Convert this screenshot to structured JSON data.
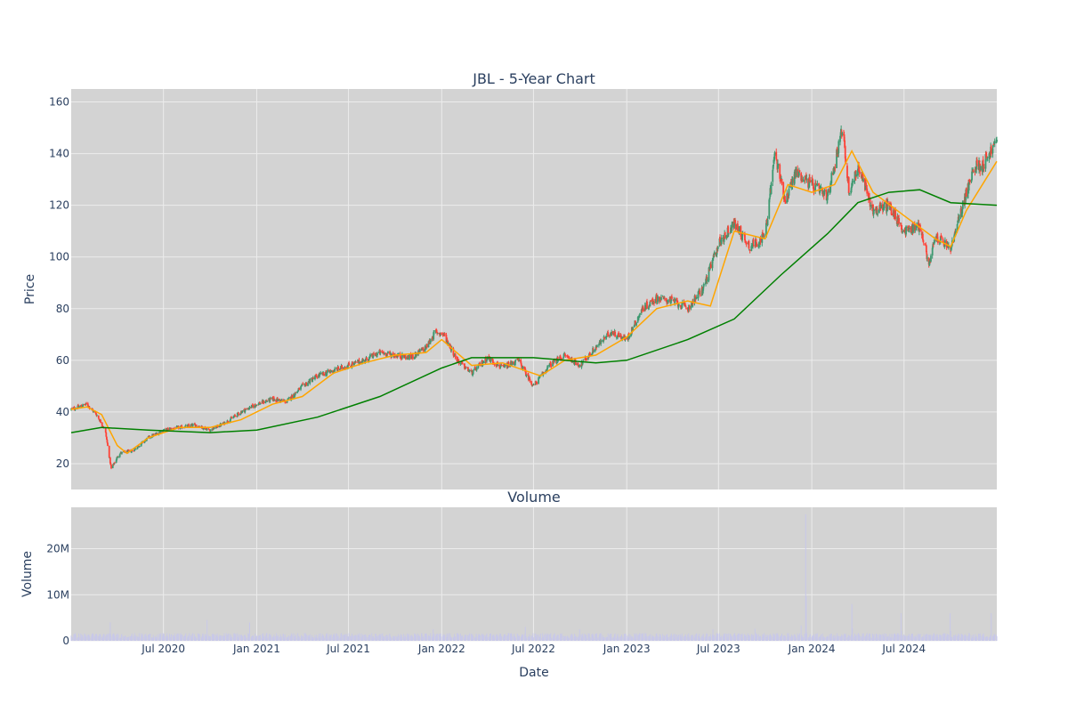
{
  "colors": {
    "plot_bg": "#d3d3d3",
    "grid": "#ececec",
    "increasing": "#3d9970",
    "decreasing": "#ff4136",
    "ma_short": "#ffa500",
    "ma_long": "#008000",
    "volume": "#c8c8e8",
    "text": "#2a3f5f"
  },
  "chart_data": [
    {
      "type": "candlestick",
      "title": "JBL - 5-Year Chart",
      "ylabel": "Price",
      "ylim": [
        10,
        165
      ],
      "yticks": [
        20,
        40,
        60,
        80,
        100,
        120,
        140,
        160
      ],
      "grid": true,
      "x_range": [
        "2020-01-01",
        "2024-12-31"
      ],
      "price_path": [
        [
          "2020-01-01",
          41
        ],
        [
          "2020-02-01",
          43
        ],
        [
          "2020-02-20",
          39
        ],
        [
          "2020-03-08",
          33
        ],
        [
          "2020-03-20",
          18
        ],
        [
          "2020-04-05",
          24
        ],
        [
          "2020-05-01",
          25
        ],
        [
          "2020-06-01",
          30
        ],
        [
          "2020-07-01",
          33
        ],
        [
          "2020-08-01",
          34
        ],
        [
          "2020-09-01",
          35
        ],
        [
          "2020-10-01",
          33
        ],
        [
          "2020-11-01",
          36
        ],
        [
          "2020-12-01",
          40
        ],
        [
          "2021-01-01",
          43
        ],
        [
          "2021-02-01",
          45
        ],
        [
          "2021-03-01",
          44
        ],
        [
          "2021-04-01",
          50
        ],
        [
          "2021-05-01",
          54
        ],
        [
          "2021-06-01",
          56
        ],
        [
          "2021-07-01",
          58
        ],
        [
          "2021-08-01",
          60
        ],
        [
          "2021-09-01",
          63
        ],
        [
          "2021-10-01",
          62
        ],
        [
          "2021-11-01",
          61
        ],
        [
          "2021-12-01",
          65
        ],
        [
          "2021-12-20",
          71
        ],
        [
          "2022-01-05",
          70
        ],
        [
          "2022-02-01",
          60
        ],
        [
          "2022-03-01",
          55
        ],
        [
          "2022-04-01",
          61
        ],
        [
          "2022-05-01",
          57
        ],
        [
          "2022-06-01",
          60
        ],
        [
          "2022-07-01",
          50
        ],
        [
          "2022-08-01",
          58
        ],
        [
          "2022-09-01",
          62
        ],
        [
          "2022-10-01",
          58
        ],
        [
          "2022-11-01",
          65
        ],
        [
          "2022-12-01",
          71
        ],
        [
          "2023-01-01",
          68
        ],
        [
          "2023-02-01",
          80
        ],
        [
          "2023-03-01",
          84
        ],
        [
          "2023-04-01",
          83
        ],
        [
          "2023-05-01",
          80
        ],
        [
          "2023-06-01",
          88
        ],
        [
          "2023-07-01",
          105
        ],
        [
          "2023-08-01",
          113
        ],
        [
          "2023-09-01",
          104
        ],
        [
          "2023-10-01",
          108
        ],
        [
          "2023-10-20",
          140
        ],
        [
          "2023-11-10",
          122
        ],
        [
          "2023-12-01",
          133
        ],
        [
          "2024-01-01",
          128
        ],
        [
          "2024-02-01",
          123
        ],
        [
          "2024-03-01",
          150
        ],
        [
          "2024-03-15",
          125
        ],
        [
          "2024-04-01",
          135
        ],
        [
          "2024-05-01",
          118
        ],
        [
          "2024-06-01",
          120
        ],
        [
          "2024-07-01",
          110
        ],
        [
          "2024-08-01",
          112
        ],
        [
          "2024-08-20",
          97
        ],
        [
          "2024-09-01",
          108
        ],
        [
          "2024-10-01",
          103
        ],
        [
          "2024-11-01",
          125
        ],
        [
          "2024-11-20",
          136
        ],
        [
          "2024-12-01",
          135
        ],
        [
          "2024-12-31",
          145
        ]
      ],
      "series": [
        {
          "name": "",
          "color": "#ffa500",
          "points": [
            [
              "2020-01-01",
              41
            ],
            [
              "2020-02-01",
              42
            ],
            [
              "2020-03-01",
              39
            ],
            [
              "2020-04-01",
              27
            ],
            [
              "2020-04-20",
              24
            ],
            [
              "2020-06-01",
              30
            ],
            [
              "2020-08-01",
              34
            ],
            [
              "2020-10-01",
              34
            ],
            [
              "2020-12-01",
              37
            ],
            [
              "2021-02-01",
              43
            ],
            [
              "2021-04-01",
              46
            ],
            [
              "2021-06-01",
              55
            ],
            [
              "2021-08-01",
              59
            ],
            [
              "2021-10-01",
              62
            ],
            [
              "2021-12-01",
              63
            ],
            [
              "2022-01-01",
              68
            ],
            [
              "2022-03-01",
              58
            ],
            [
              "2022-05-01",
              59
            ],
            [
              "2022-07-15",
              54
            ],
            [
              "2022-09-01",
              60
            ],
            [
              "2022-11-01",
              62
            ],
            [
              "2023-01-01",
              69
            ],
            [
              "2023-03-01",
              80
            ],
            [
              "2023-05-01",
              83
            ],
            [
              "2023-06-15",
              81
            ],
            [
              "2023-08-01",
              110
            ],
            [
              "2023-10-01",
              107
            ],
            [
              "2023-11-15",
              128
            ],
            [
              "2024-01-01",
              125
            ],
            [
              "2024-02-15",
              128
            ],
            [
              "2024-03-20",
              141
            ],
            [
              "2024-05-01",
              125
            ],
            [
              "2024-07-01",
              116
            ],
            [
              "2024-09-01",
              107
            ],
            [
              "2024-10-01",
              104
            ],
            [
              "2024-11-01",
              118
            ],
            [
              "2024-12-31",
              137
            ]
          ]
        },
        {
          "name": "",
          "color": "#008000",
          "points": [
            [
              "2020-01-01",
              32
            ],
            [
              "2020-03-01",
              34
            ],
            [
              "2020-06-01",
              33
            ],
            [
              "2020-10-01",
              32
            ],
            [
              "2021-01-01",
              33
            ],
            [
              "2021-05-01",
              38
            ],
            [
              "2021-09-01",
              46
            ],
            [
              "2022-01-01",
              57
            ],
            [
              "2022-03-01",
              61
            ],
            [
              "2022-07-01",
              61
            ],
            [
              "2022-11-01",
              59
            ],
            [
              "2023-01-01",
              60
            ],
            [
              "2023-05-01",
              68
            ],
            [
              "2023-08-01",
              76
            ],
            [
              "2023-11-01",
              93
            ],
            [
              "2024-02-01",
              109
            ],
            [
              "2024-04-01",
              121
            ],
            [
              "2024-06-01",
              125
            ],
            [
              "2024-08-01",
              126
            ],
            [
              "2024-10-01",
              121
            ],
            [
              "2024-12-31",
              120
            ]
          ]
        }
      ]
    },
    {
      "type": "bar",
      "title": "Volume",
      "xlabel": "Date",
      "ylabel": "Volume",
      "ylim": [
        0,
        29
      ],
      "yticks": [
        0,
        10,
        20
      ],
      "ytick_labels": [
        "0",
        "10M",
        "20M"
      ],
      "xticks": [
        "2020-07-01",
        "2021-01-01",
        "2021-07-01",
        "2022-01-01",
        "2022-07-01",
        "2023-01-01",
        "2023-07-01",
        "2024-01-01",
        "2024-07-01"
      ],
      "xtick_labels": [
        "Jul 2020",
        "Jan 2021",
        "Jul 2021",
        "Jan 2022",
        "Jul 2022",
        "Jan 2023",
        "Jul 2023",
        "Jan 2024",
        "Jul 2024"
      ],
      "baseline_millions": 1.2,
      "spikes": [
        [
          "2020-03-18",
          4
        ],
        [
          "2020-06-20",
          4
        ],
        [
          "2020-09-25",
          4.5
        ],
        [
          "2020-12-18",
          4
        ],
        [
          "2021-03-20",
          3
        ],
        [
          "2021-12-15",
          2.5
        ],
        [
          "2022-06-15",
          3
        ],
        [
          "2022-09-30",
          2.5
        ],
        [
          "2023-06-20",
          2.5
        ],
        [
          "2023-09-10",
          7.5
        ],
        [
          "2023-09-30",
          7
        ],
        [
          "2023-12-10",
          9.5
        ],
        [
          "2023-12-20",
          27.5
        ],
        [
          "2024-03-20",
          8
        ],
        [
          "2024-06-25",
          6
        ],
        [
          "2024-09-30",
          6
        ],
        [
          "2024-12-20",
          6
        ]
      ]
    }
  ]
}
